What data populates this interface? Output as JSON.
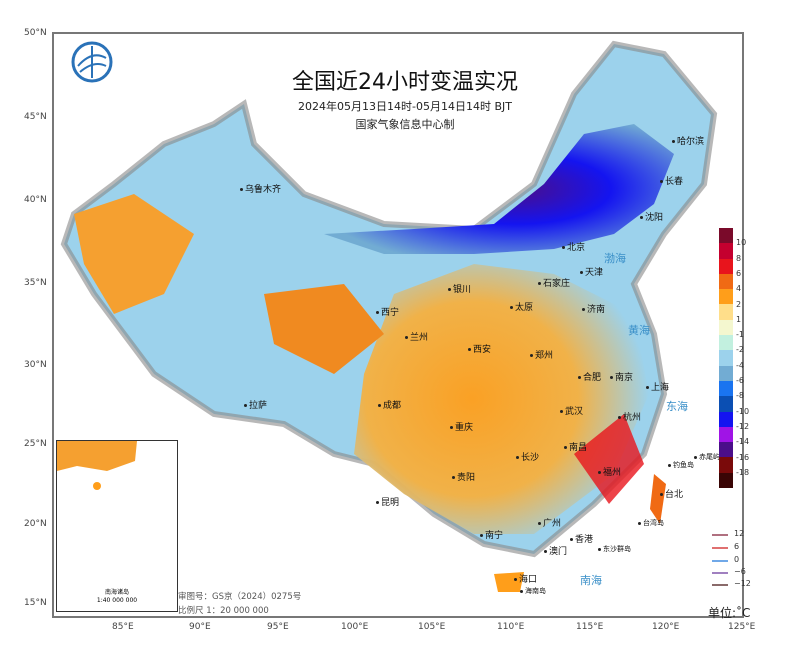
{
  "title": "全国近24小时变温实况",
  "subtitle": "2024年05月13日14时-05月14日14时 BJT",
  "producer": "国家气象信息中心制",
  "lat_ticks": [
    "50°N",
    "45°N",
    "40°N",
    "35°N",
    "30°N",
    "25°N",
    "20°N",
    "15°N"
  ],
  "lon_ticks": [
    "85°E",
    "90°E",
    "95°E",
    "100°E",
    "105°E",
    "110°E",
    "115°E",
    "120°E",
    "125°E"
  ],
  "legend": {
    "colors": [
      "#7a0a2a",
      "#c4002f",
      "#e8141c",
      "#f06a14",
      "#ff9e1a",
      "#ffde8a",
      "#f4f7cf",
      "#c2f0df",
      "#9cd2ec",
      "#72acd3",
      "#1a74f0",
      "#0b4fb3",
      "#1414f0",
      "#a014e6",
      "#4b0e8a",
      "#7a0a0a",
      "#3a0505"
    ],
    "labels": [
      "10",
      "8",
      "6",
      "4",
      "2",
      "1",
      "-1",
      "-2",
      "-4",
      "-6",
      "-8",
      "-10",
      "-12",
      "-14",
      "-16",
      "-18"
    ]
  },
  "contour_legend": [
    {
      "label": "12",
      "color": "#b07080"
    },
    {
      "label": "6",
      "color": "#e07070"
    },
    {
      "label": "0",
      "color": "#70a8e8"
    },
    {
      "label": "−6",
      "color": "#a080c0"
    },
    {
      "label": "−12",
      "color": "#8a6a6a"
    }
  ],
  "unit": "单位:˚C",
  "cities": [
    "乌鲁木齐",
    "哈尔滨",
    "长春",
    "沈阳",
    "北京",
    "天津",
    "石家庄",
    "济南",
    "太原",
    "银川",
    "西宁",
    "兰州",
    "西安",
    "郑州",
    "拉萨",
    "成都",
    "重庆",
    "武汉",
    "合肥",
    "南京",
    "上海",
    "杭州",
    "长沙",
    "南昌",
    "贵阳",
    "昆明",
    "福州",
    "台北",
    "广州",
    "南宁",
    "香港",
    "澳门",
    "海口"
  ],
  "seas": [
    "渤海",
    "黄海",
    "东海",
    "南海"
  ],
  "islands": [
    "台湾岛",
    "海南岛",
    "东沙群岛",
    "钓鱼岛",
    "赤尾屿"
  ],
  "inset": {
    "title": "南海诸岛",
    "scale": "1:40 000 000"
  },
  "approval": "审图号：GS京（2024）0275号",
  "scale": "比例尺  1：20 000 000"
}
